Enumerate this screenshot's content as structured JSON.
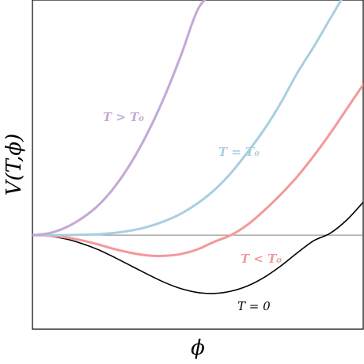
{
  "chart_data": {
    "type": "line",
    "xlabel": "ϕ",
    "ylabel": "V(T,ϕ)",
    "xlim": [
      0,
      1
    ],
    "ylim": [
      -0.5,
      1.25
    ],
    "grid": false,
    "legend": "none",
    "baseline": {
      "y": 0,
      "color": "#7f7f7f"
    },
    "series": [
      {
        "name": "T = 0",
        "label_text": "T = 0",
        "color": "#000000",
        "x": [
          0,
          0.05,
          0.1,
          0.15,
          0.2,
          0.25,
          0.3,
          0.35,
          0.4,
          0.45,
          0.5,
          0.55,
          0.6,
          0.65,
          0.7,
          0.75,
          0.8,
          0.85,
          0.9,
          0.95,
          1.0
        ],
        "y": [
          0,
          -0.005,
          -0.02,
          -0.045,
          -0.078,
          -0.12,
          -0.165,
          -0.21,
          -0.252,
          -0.285,
          -0.305,
          -0.31,
          -0.298,
          -0.27,
          -0.225,
          -0.165,
          -0.095,
          -0.03,
          0.01,
          0.08,
          0.175
        ]
      },
      {
        "name": "T < T0",
        "label_text": "T < T₀",
        "color": "#f4989a",
        "x": [
          0,
          0.05,
          0.1,
          0.15,
          0.2,
          0.25,
          0.3,
          0.35,
          0.4,
          0.45,
          0.5,
          0.55,
          0.6,
          0.65,
          0.7,
          0.75,
          0.8,
          0.85,
          0.9,
          0.95,
          1.0
        ],
        "y": [
          0,
          -0.003,
          -0.012,
          -0.028,
          -0.05,
          -0.075,
          -0.095,
          -0.108,
          -0.11,
          -0.1,
          -0.075,
          -0.035,
          0.0,
          0.055,
          0.13,
          0.215,
          0.31,
          0.42,
          0.54,
          0.67,
          0.8
        ]
      },
      {
        "name": "T = T0",
        "label_text": "T = T₀",
        "color": "#a8cfe0",
        "x": [
          0,
          0.05,
          0.1,
          0.15,
          0.2,
          0.25,
          0.3,
          0.35,
          0.4,
          0.45,
          0.5,
          0.55,
          0.6,
          0.65,
          0.7,
          0.75,
          0.8,
          0.85,
          0.9,
          0.95
        ],
        "y": [
          0,
          0.0,
          0.0,
          0.002,
          0.005,
          0.012,
          0.025,
          0.045,
          0.075,
          0.115,
          0.17,
          0.24,
          0.33,
          0.44,
          0.56,
          0.7,
          0.86,
          1.0,
          1.15,
          1.3
        ]
      },
      {
        "name": "T > T0",
        "label_text": "T > T₀",
        "color": "#c3a8d6",
        "x": [
          0,
          0.05,
          0.1,
          0.15,
          0.2,
          0.25,
          0.3,
          0.35,
          0.4,
          0.45,
          0.5,
          0.55
        ],
        "y": [
          0,
          0.01,
          0.04,
          0.09,
          0.16,
          0.26,
          0.39,
          0.55,
          0.74,
          0.96,
          1.2,
          1.3
        ]
      }
    ]
  }
}
